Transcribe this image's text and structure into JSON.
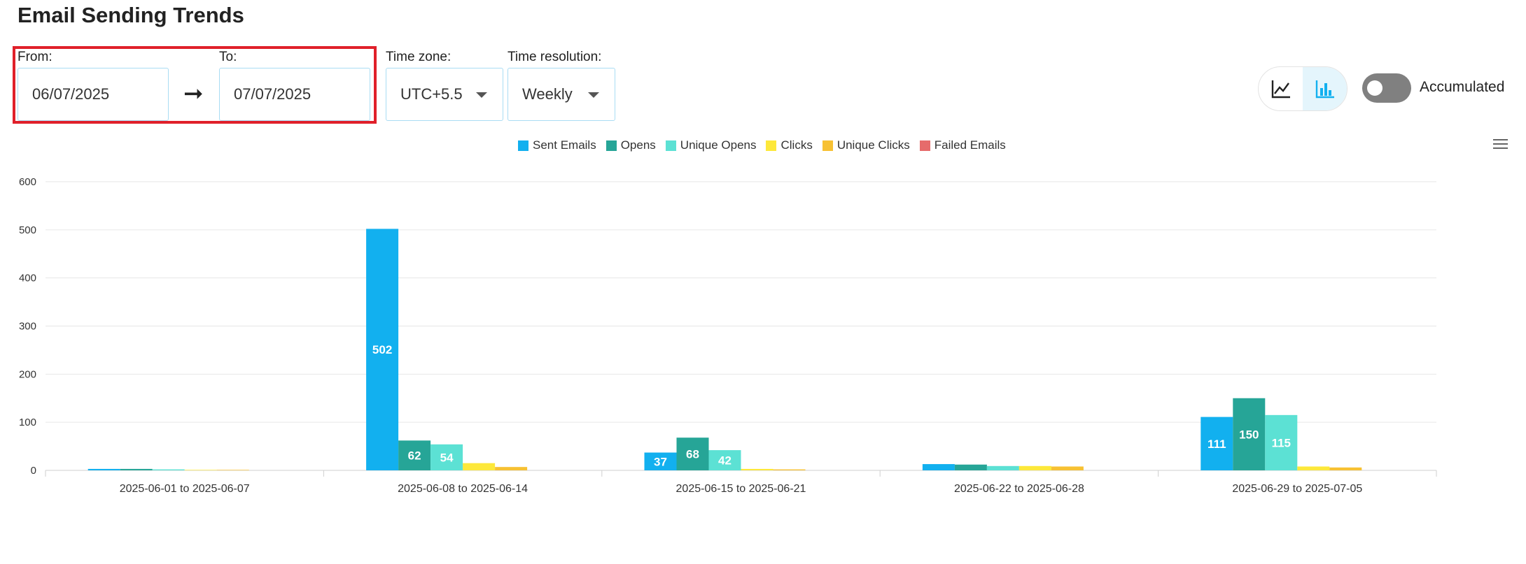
{
  "page": {
    "title": "Email Sending Trends"
  },
  "filters": {
    "from_label": "From:",
    "from_value": "06/07/2025",
    "to_label": "To:",
    "to_value": "07/07/2025",
    "timezone_label": "Time zone:",
    "timezone_value": "UTC+5.5",
    "resolution_label": "Time resolution:",
    "resolution_value": "Weekly",
    "range_arrow": "➞"
  },
  "view": {
    "line_icon": "line-chart-icon",
    "bar_icon": "bar-chart-icon",
    "active_view": "bar",
    "accumulated_label": "Accumulated",
    "accumulated_on": false,
    "menu_icon": "hamburger-menu-icon"
  },
  "colors": {
    "accent": "#12b0ef",
    "highlight": "#e0202a"
  },
  "chart_data": {
    "type": "bar",
    "categories": [
      "2025-06-01 to 2025-06-07",
      "2025-06-08 to 2025-06-14",
      "2025-06-15 to 2025-06-21",
      "2025-06-22 to 2025-06-28",
      "2025-06-29 to 2025-07-05"
    ],
    "series": [
      {
        "name": "Sent Emails",
        "color": "#12b0ef",
        "values": [
          3,
          502,
          37,
          13,
          111
        ]
      },
      {
        "name": "Opens",
        "color": "#26a597",
        "values": [
          3,
          62,
          68,
          12,
          150
        ]
      },
      {
        "name": "Unique Opens",
        "color": "#5ce1d4",
        "values": [
          2,
          54,
          42,
          9,
          115
        ]
      },
      {
        "name": "Clicks",
        "color": "#fde83a",
        "values": [
          1,
          15,
          3,
          9,
          8
        ]
      },
      {
        "name": "Unique Clicks",
        "color": "#f7c133",
        "values": [
          1,
          7,
          2,
          8,
          6
        ]
      },
      {
        "name": "Failed Emails",
        "color": "#e66b6b",
        "values": [
          0,
          0,
          0,
          0,
          0
        ]
      }
    ],
    "labeled": {
      "Sent Emails": [
        false,
        true,
        true,
        false,
        true
      ],
      "Opens": [
        false,
        true,
        true,
        false,
        true
      ],
      "Unique Opens": [
        false,
        true,
        true,
        false,
        true
      ]
    },
    "yticks": [
      0,
      100,
      200,
      300,
      400,
      500,
      600
    ],
    "ylim": [
      0,
      600
    ],
    "title": "",
    "xlabel": "",
    "ylabel": "",
    "grid": true,
    "legend_position": "top"
  }
}
